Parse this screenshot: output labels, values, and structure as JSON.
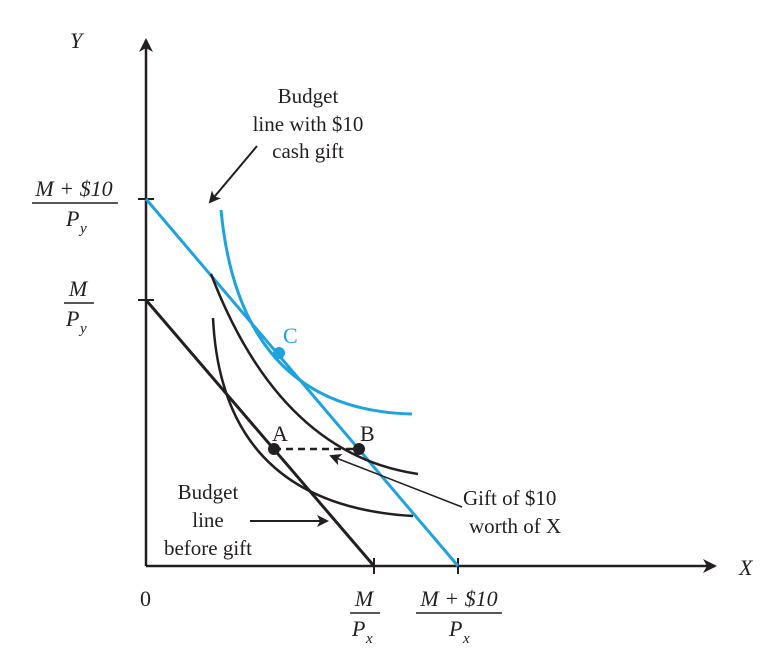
{
  "axes": {
    "y_label": "Y",
    "x_label": "X",
    "origin_label": "0"
  },
  "y_ticks": {
    "upper": {
      "numerator": "M + $10",
      "denominator": "P",
      "subscript": "y"
    },
    "lower": {
      "numerator": "M",
      "denominator": "P",
      "subscript": "y"
    }
  },
  "x_ticks": {
    "inner": {
      "numerator": "M",
      "denominator": "P",
      "subscript": "x"
    },
    "outer": {
      "numerator": "M + $10",
      "denominator": "P",
      "subscript": "x"
    }
  },
  "points": {
    "a": "A",
    "b": "B",
    "c": "C"
  },
  "annotations": {
    "cash_gift_budget": [
      "Budget",
      "line with $10",
      "cash gift"
    ],
    "gift_of_x": [
      "Gift of $10",
      "worth of X"
    ],
    "budget_before": [
      "Budget",
      "line",
      "before gift"
    ]
  },
  "colors": {
    "black": "#231f20",
    "cyan": "#1fa3dc"
  }
}
